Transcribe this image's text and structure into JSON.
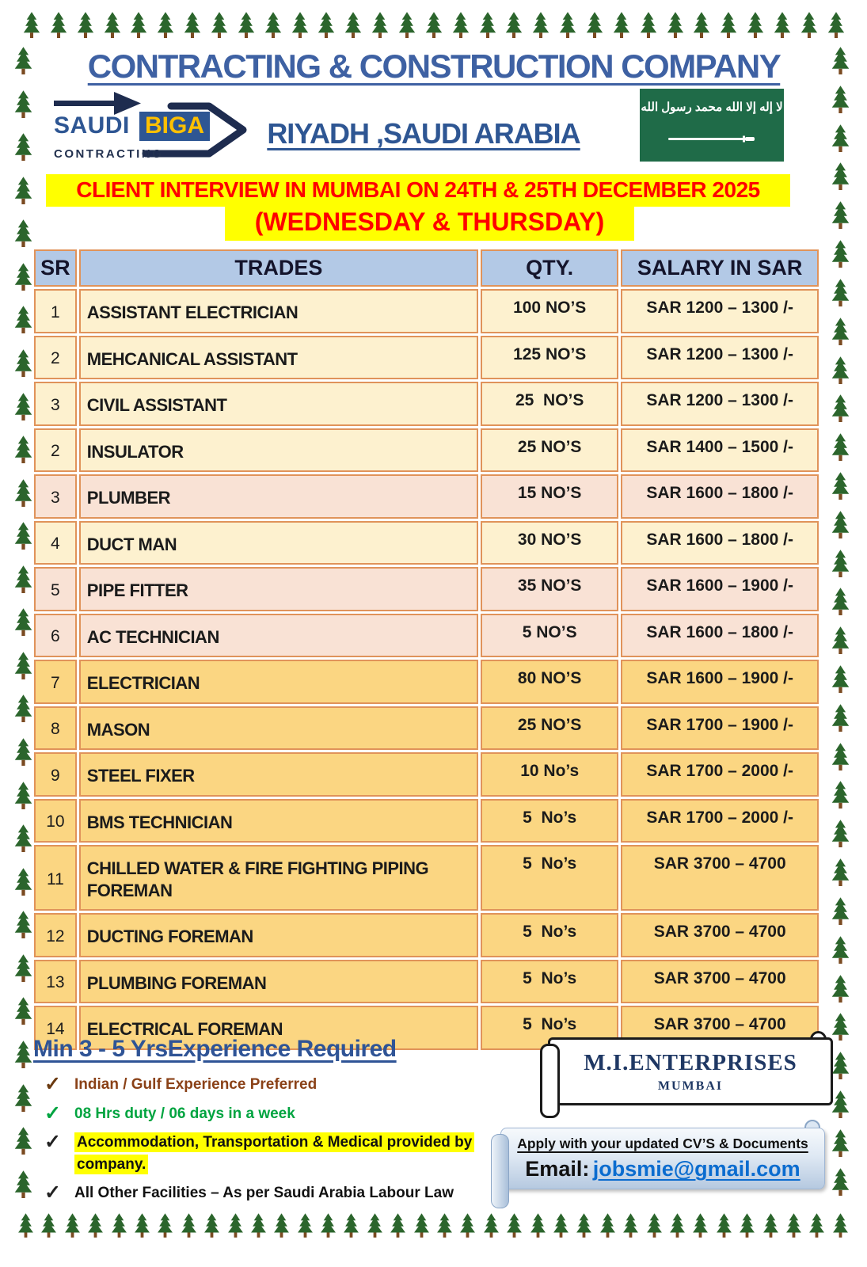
{
  "header": {
    "title": "CONTRACTING & CONSTRUCTION COMPANY",
    "location": "RIYADH ,SAUDI ARABIA",
    "logo": {
      "saudi": "SAUDI",
      "biga": "BIGA",
      "contracting": "CONTRACTING"
    },
    "flag_arabic": "لا إله إلا الله محمد رسول الله"
  },
  "banner": {
    "line1": "CLIENT INTERVIEW IN MUMBAI ON 24TH & 25TH DECEMBER 2025",
    "line2": "(WEDNESDAY & THURSDAY)"
  },
  "table": {
    "headers": [
      "SR",
      "TRADES",
      "QTY.",
      "SALARY IN SAR"
    ],
    "rows": [
      {
        "sr": "1",
        "trade": "ASSISTANT ELECTRICIAN",
        "qty": "100 NO’S",
        "salary": "SAR 1200 – 1300 /-",
        "tone": "cream"
      },
      {
        "sr": "2",
        "trade": "MEHCANICAL ASSISTANT",
        "qty": "125 NO’S",
        "salary": "SAR 1200 – 1300 /-",
        "tone": "cream"
      },
      {
        "sr": "3",
        "trade": "CIVIL ASSISTANT",
        "qty": "25  NO’S",
        "salary": "SAR 1200 – 1300 /-",
        "tone": "cream"
      },
      {
        "sr": "2",
        "trade": "INSULATOR",
        "qty": "25 NO’S",
        "salary": "SAR 1400 – 1500 /-",
        "tone": "cream"
      },
      {
        "sr": "3",
        "trade": "PLUMBER",
        "qty": "15 NO’S",
        "salary": "SAR 1600 – 1800 /-",
        "tone": "pink"
      },
      {
        "sr": "4",
        "trade": "DUCT MAN",
        "qty": "30 NO’S",
        "salary": "SAR 1600 – 1800 /-",
        "tone": "cream"
      },
      {
        "sr": "5",
        "trade": "PIPE FITTER",
        "qty": "35 NO’S",
        "salary": "SAR 1600 – 1900 /-",
        "tone": "pink"
      },
      {
        "sr": "6",
        "trade": "AC TECHNICIAN",
        "qty": "5 NO’S",
        "salary": "SAR 1600 – 1800 /-",
        "tone": "pink"
      },
      {
        "sr": "7",
        "trade": "ELECTRICIAN",
        "qty": "80 NO’S",
        "salary": "SAR 1600 – 1900 /-",
        "tone": "gold"
      },
      {
        "sr": "8",
        "trade": "MASON",
        "qty": "25 NO’S",
        "salary": "SAR 1700 – 1900 /-",
        "tone": "gold"
      },
      {
        "sr": "9",
        "trade": "STEEL FIXER",
        "qty": "10 No’s",
        "salary": "SAR 1700 – 2000 /-",
        "tone": "gold"
      },
      {
        "sr": "10",
        "trade": "BMS TECHNICIAN",
        "qty": "5  No’s",
        "salary": "SAR 1700 – 2000 /-",
        "tone": "gold"
      },
      {
        "sr": "11",
        "trade": "CHILLED WATER & FIRE FIGHTING PIPING FOREMAN",
        "qty": "5  No’s",
        "salary": "SAR 3700 – 4700",
        "tone": "gold"
      },
      {
        "sr": "12",
        "trade": "DUCTING FOREMAN",
        "qty": "5  No’s",
        "salary": "SAR 3700 – 4700",
        "tone": "gold"
      },
      {
        "sr": "13",
        "trade": "PLUMBING FOREMAN",
        "qty": "5  No’s",
        "salary": "SAR 3700 – 4700",
        "tone": "gold"
      },
      {
        "sr": "14",
        "trade": "ELECTRICAL FOREMAN",
        "qty": "5  No’s",
        "salary": "SAR 3700 – 4700",
        "tone": "gold"
      }
    ]
  },
  "requirements": {
    "title": "Min 3 - 5 YrsExperience Required",
    "items": [
      {
        "text": "Indian / Gulf Experience Preferred",
        "text_color": "#8a4117",
        "check_color": "#6b3a10",
        "highlight": false,
        "nowrap": true
      },
      {
        "text": "08 Hrs duty / 06 days in a week",
        "text_color": "#00a440",
        "check_color": "#00a440",
        "highlight": false,
        "nowrap": true
      },
      {
        "text": "Accommodation, Transportation & Medical provided by company.",
        "text_color": "#111111",
        "check_color": "#222222",
        "highlight": true,
        "nowrap": false
      },
      {
        "text": "All Other Facilities – As per Saudi Arabia Labour Law",
        "text_color": "#111111",
        "check_color": "#222222",
        "highlight": false,
        "nowrap": true
      }
    ]
  },
  "agency": {
    "name": "M.I.ENTERPRISES",
    "city": "MUMBAI"
  },
  "apply": {
    "instruction": "Apply with your updated CV’S & Documents",
    "email_label": "Email:",
    "email": "jobsmie@gmail.com"
  },
  "colors": {
    "title_blue": "#3e61a3",
    "banner_red": "#fe0000",
    "banner_yellow": "#ffff00",
    "table_header_bg": "#b3c9e6",
    "row_cream": "#fdf1cf",
    "row_pink": "#f9e2d5",
    "row_gold": "#fbd682",
    "table_border": "#e0935a",
    "flag_green": "#1f6b48",
    "email_blue": "#0b6ccf",
    "tree_green": "#2b652c",
    "tree_trunk": "#7a4a21"
  }
}
